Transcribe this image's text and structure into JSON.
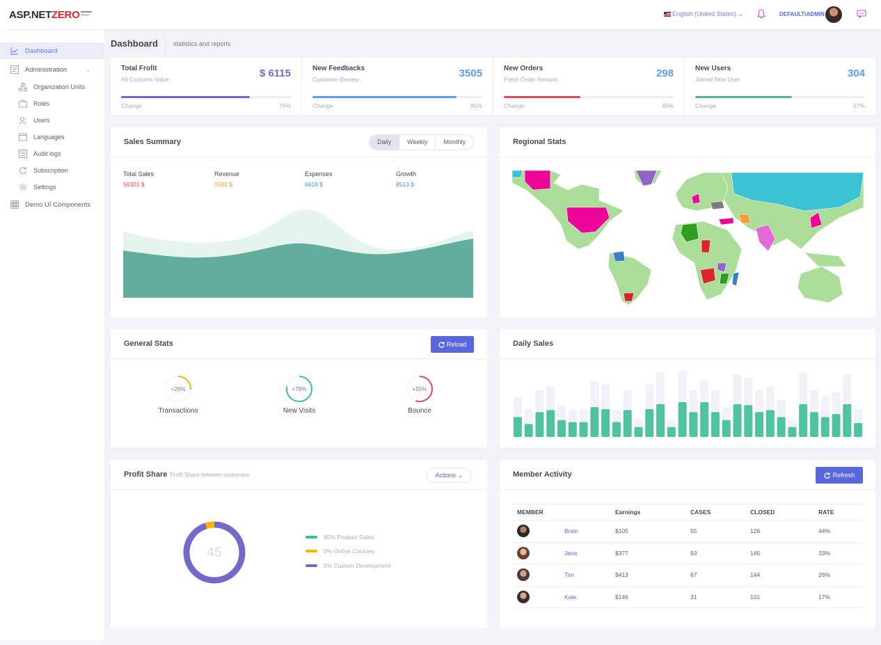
{
  "header": {
    "logo_prefix": "ASP.NET",
    "logo_suffix": "ZERO",
    "language": "English (United States)",
    "user": "DEFAULT\\ADMIN"
  },
  "sidebar": {
    "items": [
      {
        "label": "Dashboard",
        "icon": "chart-icon"
      },
      {
        "label": "Administration",
        "icon": "admin-icon"
      },
      {
        "label": "Organization Units",
        "icon": "sitemap-icon"
      },
      {
        "label": "Roles",
        "icon": "briefcase-icon"
      },
      {
        "label": "Users",
        "icon": "users-icon"
      },
      {
        "label": "Languages",
        "icon": "window-icon"
      },
      {
        "label": "Audit logs",
        "icon": "list-icon"
      },
      {
        "label": "Subscription",
        "icon": "refresh-icon"
      },
      {
        "label": "Settings",
        "icon": "gear-icon"
      },
      {
        "label": "Demo UI Components",
        "icon": "grid-icon"
      }
    ]
  },
  "subheader": {
    "title": "Dashboard",
    "description": "statistics and reports"
  },
  "stats": [
    {
      "title": "Total Frofit",
      "sub": "All Customs Value",
      "value": "$ 6115",
      "change_label": "Change",
      "pct_text": "76%",
      "pct": 76,
      "color": "#716aca"
    },
    {
      "title": "New Feedbacks",
      "sub": "Customer Review",
      "value": "3505",
      "change_label": "Change",
      "pct_text": "85%",
      "pct": 85,
      "color": "#5d9cec"
    },
    {
      "title": "New Orders",
      "sub": "Fresh Order Amount",
      "value": "298",
      "change_label": "Change",
      "pct_text": "45%",
      "pct": 45,
      "color": "#e4474f"
    },
    {
      "title": "New Users",
      "sub": "Joined New User",
      "value": "304",
      "change_label": "Change",
      "pct_text": "57%",
      "pct": 57,
      "color": "#4eb48c"
    }
  ],
  "sales_summary": {
    "title": "Sales Summary",
    "periods": [
      "Daily",
      "Weekly",
      "Monthly"
    ],
    "active_period": "Daily",
    "metrics": [
      {
        "label": "Total Sales",
        "value": "56301 $",
        "color": "#e4474f"
      },
      {
        "label": "Revenue",
        "value": "1592 $",
        "color": "#f0a020"
      },
      {
        "label": "Expenses",
        "value": "6618 $",
        "color": "#3d94d8"
      },
      {
        "label": "Growth",
        "value": "8513 $",
        "color": "#3d94d8"
      }
    ]
  },
  "regional_stats": {
    "title": "Regional Stats"
  },
  "general_stats": {
    "title": "General Stats",
    "reload_label": "Reload",
    "gauges": [
      {
        "label": "Transactions",
        "value_text": "+26%",
        "value": 26,
        "color": "#f4b400"
      },
      {
        "label": "New Visits",
        "value_text": "+78%",
        "value": 78,
        "color": "#34bfa3"
      },
      {
        "label": "Bounce",
        "value_text": "+55%",
        "value": 55,
        "color": "#e4474f"
      }
    ]
  },
  "daily_sales": {
    "title": "Daily Sales",
    "chart_data": {
      "type": "bar",
      "series": [
        {
          "values": [
            20,
            13,
            25,
            27,
            17,
            15,
            15,
            30,
            28,
            15,
            27,
            10,
            28,
            33,
            10,
            35,
            25,
            35,
            25,
            17,
            33,
            32,
            25,
            27,
            20,
            10,
            33,
            25,
            20,
            23,
            33,
            14
          ]
        },
        {
          "values": [
            40,
            28,
            47,
            51,
            32,
            27,
            28,
            56,
            53,
            27,
            47,
            18,
            53,
            65,
            17,
            67,
            47,
            57,
            47,
            30,
            63,
            60,
            47,
            51,
            37,
            17,
            65,
            47,
            41,
            45,
            63,
            28
          ]
        }
      ],
      "colors": [
        "#4fc3a1",
        "#f1f2f9"
      ]
    }
  },
  "profit_share": {
    "title": "Profit Share",
    "subtitle": "Profit Share between customers",
    "actions_label": "Actions",
    "center_value": "45",
    "chart_data": {
      "type": "pie",
      "labels": [
        "95% Product Sales",
        "0% Online Courses",
        "5% Custom Development"
      ],
      "values": [
        95,
        0,
        5
      ],
      "colors": [
        "#34bfa3",
        "#f4b400",
        "#716aca"
      ]
    }
  },
  "member_activity": {
    "title": "Member Activity",
    "refresh_label": "Refresh",
    "columns": [
      "MEMBER",
      "Earnings",
      "CASES",
      "CLOSED",
      "RATE"
    ],
    "rows": [
      {
        "name": "Brain",
        "earnings": "$105",
        "cases": "55",
        "closed": "126",
        "rate": "44%"
      },
      {
        "name": "Jane",
        "earnings": "$377",
        "cases": "93",
        "closed": "145",
        "rate": "33%"
      },
      {
        "name": "Tim",
        "earnings": "$413",
        "cases": "67",
        "closed": "144",
        "rate": "26%"
      },
      {
        "name": "Kate",
        "earnings": "$146",
        "cases": "31",
        "closed": "101",
        "rate": "17%"
      }
    ]
  }
}
